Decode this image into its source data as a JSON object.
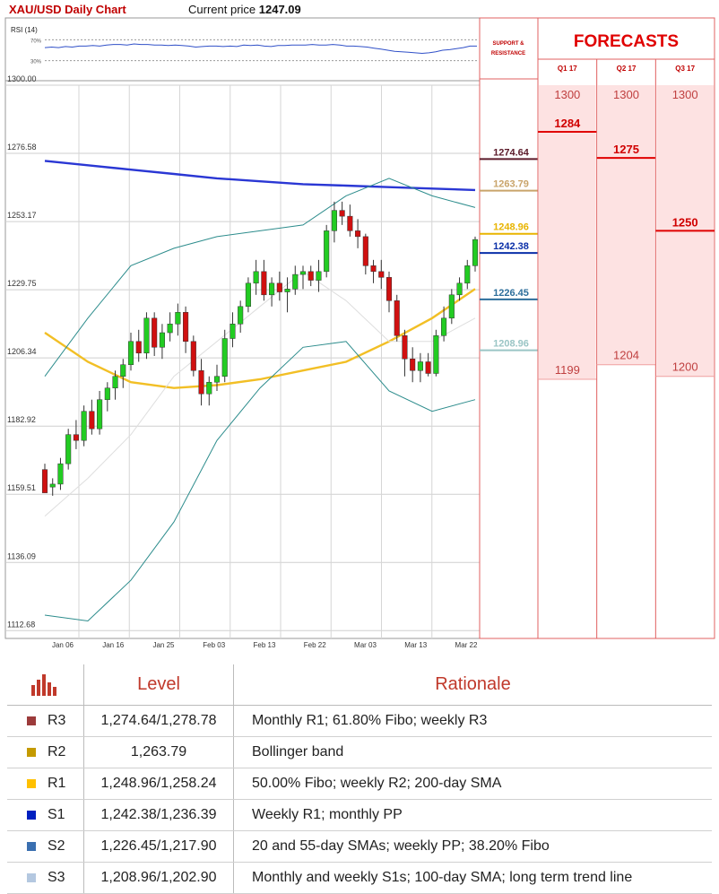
{
  "header": {
    "title": "XAU/USD Daily Chart",
    "price_label": "Current price",
    "price_value": "1247.09"
  },
  "rsi": {
    "label": "RSI (14)",
    "upper": "70%",
    "lower": "30%",
    "values": [
      55,
      56,
      55,
      57,
      56,
      58,
      58,
      59,
      58,
      60,
      61,
      61,
      60,
      62,
      61,
      61,
      60,
      60,
      59,
      60,
      59,
      58,
      56,
      57,
      58,
      58,
      57,
      58,
      57,
      60,
      59,
      60,
      58,
      57,
      59,
      59,
      60,
      60,
      60,
      61,
      60,
      60,
      61,
      60,
      58,
      58,
      57,
      56,
      54,
      52,
      50,
      48,
      47,
      46,
      45,
      44,
      45,
      47,
      50,
      51,
      53,
      55,
      58,
      58
    ]
  },
  "price_axis": {
    "ticks": [
      "1300.00",
      "1276.58",
      "1253.17",
      "1229.75",
      "1206.34",
      "1182.92",
      "1159.51",
      "1136.09",
      "1112.68"
    ]
  },
  "date_axis": {
    "ticks": [
      "Jan 06",
      "Jan 16",
      "Jan 25",
      "Feb 03",
      "Feb 13",
      "Feb 22",
      "Mar 03",
      "Mar 13",
      "Mar 22"
    ]
  },
  "sr_panel": {
    "title_line1": "SUPPORT &",
    "title_line2": "RESISTANCE",
    "levels": [
      {
        "value": "1274.64",
        "color": "#5b1a2a"
      },
      {
        "value": "1263.79",
        "color": "#c9a46a"
      },
      {
        "value": "1248.96",
        "color": "#e8b400"
      },
      {
        "value": "1242.38",
        "color": "#0a2fa8"
      },
      {
        "value": "1226.45",
        "color": "#2c6e9b"
      },
      {
        "value": "1208.96",
        "color": "#9ac5c5"
      }
    ]
  },
  "forecasts": {
    "title": "FORECASTS",
    "columns": [
      {
        "label": "Q1 17",
        "high": "1300",
        "mid": "1284",
        "low": "1199"
      },
      {
        "label": "Q2 17",
        "high": "1300",
        "mid": "1275",
        "low": "1204"
      },
      {
        "label": "Q3 17",
        "high": "1300",
        "mid": "1250",
        "low": "1200"
      }
    ]
  },
  "chart_data": {
    "type": "candlestick",
    "title": "XAU/USD Daily Chart",
    "ylim": [
      1110,
      1300
    ],
    "x_ticks": [
      "Jan 06",
      "Jan 16",
      "Jan 25",
      "Feb 03",
      "Feb 13",
      "Feb 22",
      "Mar 03",
      "Mar 13",
      "Mar 22"
    ],
    "ohlc": [
      [
        1168,
        1170,
        1160,
        1160
      ],
      [
        1162,
        1165,
        1159,
        1163
      ],
      [
        1163,
        1172,
        1161,
        1170
      ],
      [
        1170,
        1182,
        1168,
        1180
      ],
      [
        1180,
        1185,
        1175,
        1178
      ],
      [
        1178,
        1190,
        1176,
        1188
      ],
      [
        1188,
        1192,
        1180,
        1182
      ],
      [
        1182,
        1195,
        1180,
        1192
      ],
      [
        1192,
        1198,
        1188,
        1196
      ],
      [
        1196,
        1202,
        1192,
        1200
      ],
      [
        1200,
        1206,
        1196,
        1204
      ],
      [
        1204,
        1215,
        1202,
        1212
      ],
      [
        1212,
        1216,
        1205,
        1208
      ],
      [
        1208,
        1222,
        1206,
        1220
      ],
      [
        1220,
        1222,
        1207,
        1210
      ],
      [
        1210,
        1218,
        1206,
        1215
      ],
      [
        1215,
        1222,
        1212,
        1218
      ],
      [
        1218,
        1225,
        1214,
        1222
      ],
      [
        1222,
        1224,
        1208,
        1212
      ],
      [
        1212,
        1214,
        1200,
        1202
      ],
      [
        1202,
        1206,
        1190,
        1194
      ],
      [
        1194,
        1200,
        1190,
        1198
      ],
      [
        1198,
        1204,
        1195,
        1200
      ],
      [
        1200,
        1216,
        1198,
        1213
      ],
      [
        1213,
        1222,
        1210,
        1218
      ],
      [
        1218,
        1226,
        1215,
        1224
      ],
      [
        1224,
        1234,
        1222,
        1232
      ],
      [
        1232,
        1240,
        1228,
        1236
      ],
      [
        1236,
        1240,
        1226,
        1228
      ],
      [
        1228,
        1234,
        1224,
        1232
      ],
      [
        1232,
        1236,
        1226,
        1229
      ],
      [
        1229,
        1234,
        1222,
        1230
      ],
      [
        1230,
        1238,
        1228,
        1235
      ],
      [
        1235,
        1238,
        1230,
        1236
      ],
      [
        1236,
        1238,
        1231,
        1233
      ],
      [
        1233,
        1240,
        1229,
        1236
      ],
      [
        1236,
        1252,
        1234,
        1250
      ],
      [
        1250,
        1260,
        1246,
        1257
      ],
      [
        1257,
        1260,
        1252,
        1255
      ],
      [
        1255,
        1259,
        1248,
        1250
      ],
      [
        1250,
        1254,
        1244,
        1248
      ],
      [
        1248,
        1249,
        1235,
        1238
      ],
      [
        1238,
        1240,
        1232,
        1236
      ],
      [
        1236,
        1240,
        1230,
        1234
      ],
      [
        1234,
        1236,
        1222,
        1226
      ],
      [
        1226,
        1228,
        1212,
        1214
      ],
      [
        1214,
        1216,
        1200,
        1206
      ],
      [
        1206,
        1210,
        1198,
        1202
      ],
      [
        1202,
        1208,
        1198,
        1205
      ],
      [
        1205,
        1208,
        1200,
        1201
      ],
      [
        1201,
        1216,
        1200,
        1214
      ],
      [
        1214,
        1224,
        1212,
        1220
      ],
      [
        1220,
        1230,
        1218,
        1228
      ],
      [
        1228,
        1234,
        1226,
        1232
      ],
      [
        1232,
        1240,
        1230,
        1238
      ],
      [
        1238,
        1248,
        1236,
        1247
      ]
    ],
    "series": [
      {
        "name": "",
        "color": "#2a37d4",
        "values": [
          1274,
          1272.5,
          1271,
          1269.5,
          1268,
          1267,
          1266,
          1265.5,
          1265,
          1264.5,
          1264
        ]
      },
      {
        "name": "",
        "color": "#f2bf25",
        "values": [
          1215,
          1205,
          1198,
          1196,
          1197,
          1199,
          1202,
          1205,
          1212,
          1220,
          1230
        ]
      },
      {
        "name": "",
        "color": "#2c8c8c",
        "values": [
          1200,
          1220,
          1238,
          1244,
          1248,
          1250,
          1252,
          1262,
          1268,
          1262,
          1258
        ]
      },
      {
        "name": "",
        "color": "#2c8c8c",
        "values": [
          1118,
          1116,
          1130,
          1150,
          1178,
          1196,
          1210,
          1212,
          1195,
          1188,
          1192
        ]
      },
      {
        "name": "",
        "color": "#dedede",
        "values": [
          1152,
          1165,
          1180,
          1200,
          1212,
          1224,
          1236,
          1226,
          1212,
          1212,
          1220
        ]
      }
    ]
  },
  "levels_table": {
    "headers": {
      "level": "Level",
      "rationale": "Rationale"
    },
    "rows": [
      {
        "name": "R3",
        "color": "#9c3b3b",
        "level": "1,274.64/1,278.78",
        "rationale": "Monthly R1; 61.80% Fibo; weekly R3"
      },
      {
        "name": "R2",
        "color": "#c49a00",
        "level": "1,263.79",
        "rationale": "Bollinger band"
      },
      {
        "name": "R1",
        "color": "#ffc000",
        "level": "1,248.96/1,258.24",
        "rationale": "50.00% Fibo; weekly R2; 200-day SMA"
      },
      {
        "name": "S1",
        "color": "#0020c0",
        "level": "1,242.38/1,236.39",
        "rationale": "Weekly R1; monthly PP"
      },
      {
        "name": "S2",
        "color": "#3a6fb0",
        "level": "1,226.45/1,217.90",
        "rationale": "20 and 55-day SMAs; weekly PP; 38.20% Fibo"
      },
      {
        "name": "S3",
        "color": "#b4c8e0",
        "level": "1,208.96/1,202.90",
        "rationale": "Monthly and weekly S1s; 100-day SMA; long term trend line"
      }
    ]
  }
}
